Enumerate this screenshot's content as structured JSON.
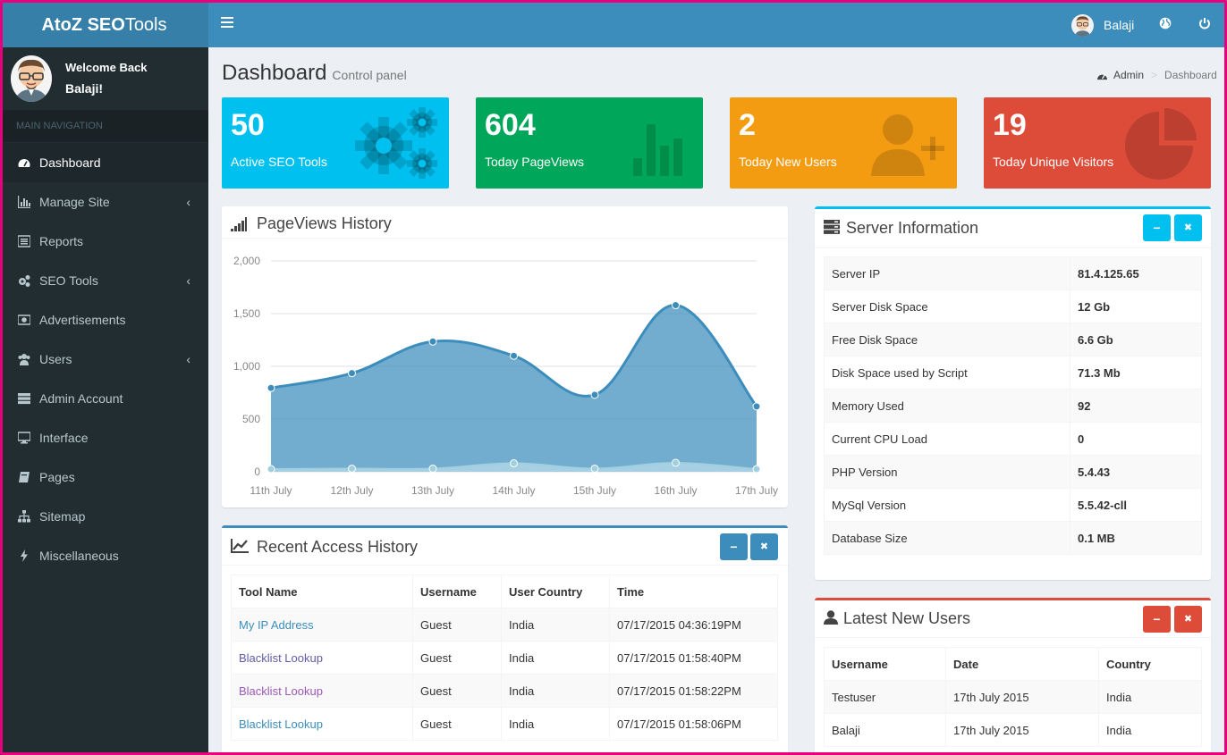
{
  "app": {
    "logo_bold": "AtoZ SEO",
    "logo_rest": "Tools",
    "top_user": "Balaji"
  },
  "sidebar": {
    "welcome": "Welcome Back",
    "user": "Balaji!",
    "nav_header": "MAIN NAVIGATION",
    "items": [
      {
        "label": "Dashboard",
        "icon": "dashboard-icon",
        "active": true,
        "chevron": false
      },
      {
        "label": "Manage Site",
        "icon": "bar-chart-icon",
        "active": false,
        "chevron": true
      },
      {
        "label": "Reports",
        "icon": "list-icon",
        "active": false,
        "chevron": false
      },
      {
        "label": "SEO Tools",
        "icon": "cogs-icon",
        "active": false,
        "chevron": true
      },
      {
        "label": "Advertisements",
        "icon": "money-icon",
        "active": false,
        "chevron": false
      },
      {
        "label": "Users",
        "icon": "users-icon",
        "active": false,
        "chevron": true
      },
      {
        "label": "Admin Account",
        "icon": "server-icon",
        "active": false,
        "chevron": false
      },
      {
        "label": "Interface",
        "icon": "desktop-icon",
        "active": false,
        "chevron": false
      },
      {
        "label": "Pages",
        "icon": "book-icon",
        "active": false,
        "chevron": false
      },
      {
        "label": "Sitemap",
        "icon": "sitemap-icon",
        "active": false,
        "chevron": false
      },
      {
        "label": "Miscellaneous",
        "icon": "bolt-icon",
        "active": false,
        "chevron": false
      }
    ]
  },
  "header": {
    "title": "Dashboard",
    "subtitle": "Control panel",
    "breadcrumb_home": "Admin",
    "breadcrumb_current": "Dashboard"
  },
  "stats": [
    {
      "value": "50",
      "label": "Active SEO Tools",
      "color": "#00c0ef",
      "icon": "gears-icon"
    },
    {
      "value": "604",
      "label": "Today PageViews",
      "color": "#00a65a",
      "icon": "bar-chart-icon"
    },
    {
      "value": "2",
      "label": "Today New Users",
      "color": "#f39c12",
      "icon": "user-plus-icon"
    },
    {
      "value": "19",
      "label": "Today Unique Visitors",
      "color": "#dd4b39",
      "icon": "pie-chart-icon"
    }
  ],
  "pageviews": {
    "title": "PageViews History"
  },
  "chart_data": {
    "type": "area",
    "categories": [
      "11th July",
      "12th July",
      "13th July",
      "14th July",
      "15th July",
      "16th July",
      "17th July"
    ],
    "series": [
      {
        "values": [
          795,
          935,
          1235,
          1100,
          730,
          1580,
          620
        ],
        "color": "#3c8dbc"
      },
      {
        "values": [
          25,
          30,
          30,
          80,
          30,
          85,
          25
        ],
        "color": "#a0d0e0"
      }
    ],
    "ylim": [
      0,
      2000
    ],
    "yticks": [
      "0",
      "500",
      "1,000",
      "1,500",
      "2,000"
    ],
    "grid": true
  },
  "access": {
    "title": "Recent Access History",
    "columns": [
      "Tool Name",
      "Username",
      "User Country",
      "Time"
    ],
    "rows": [
      {
        "tool": "My IP Address",
        "user": "Guest",
        "country": "India",
        "time": "07/17/2015 04:36:19PM",
        "color": "#3c8dbc"
      },
      {
        "tool": "Blacklist Lookup",
        "user": "Guest",
        "country": "India",
        "time": "07/17/2015 01:58:40PM",
        "color": "#605ca8"
      },
      {
        "tool": "Blacklist Lookup",
        "user": "Guest",
        "country": "India",
        "time": "07/17/2015 01:58:22PM",
        "color": "#9b59b6"
      },
      {
        "tool": "Blacklist Lookup",
        "user": "Guest",
        "country": "India",
        "time": "07/17/2015 01:58:06PM",
        "color": "#3c8dbc"
      }
    ]
  },
  "server": {
    "title": "Server Information",
    "rows": [
      {
        "key": "Server IP",
        "value": "81.4.125.65"
      },
      {
        "key": "Server Disk Space",
        "value": "12 Gb"
      },
      {
        "key": "Free Disk Space",
        "value": "6.6 Gb"
      },
      {
        "key": "Disk Space used by Script",
        "value": "71.3 Mb"
      },
      {
        "key": "Memory Used",
        "value": "92"
      },
      {
        "key": "Current CPU Load",
        "value": "0"
      },
      {
        "key": "PHP Version",
        "value": "5.4.43"
      },
      {
        "key": "MySql Version",
        "value": "5.5.42-cll"
      },
      {
        "key": "Database Size",
        "value": "0.1 MB"
      }
    ]
  },
  "newusers": {
    "title": "Latest New Users",
    "columns": [
      "Username",
      "Date",
      "Country"
    ],
    "rows": [
      {
        "name": "Testuser",
        "date": "17th July 2015",
        "country": "India"
      },
      {
        "name": "Balaji",
        "date": "17th July 2015",
        "country": "India"
      }
    ]
  },
  "tools": {
    "collapse": "−",
    "remove": "✖"
  }
}
